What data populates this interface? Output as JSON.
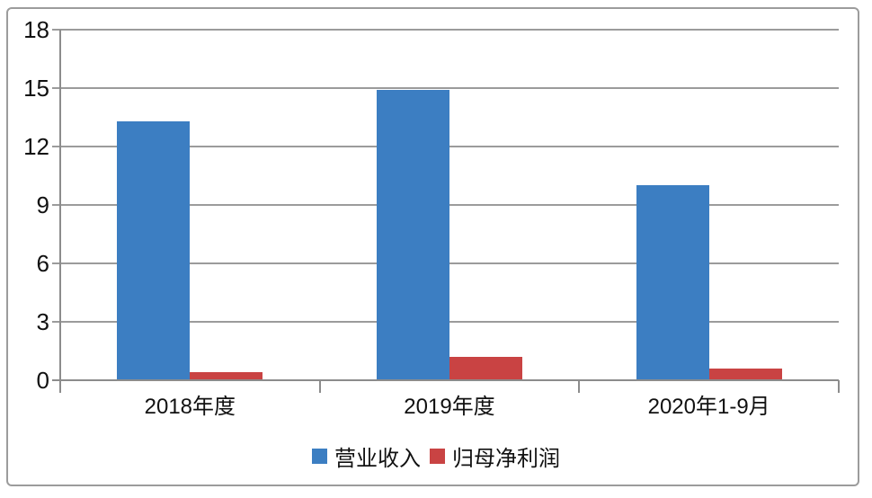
{
  "chart_data": {
    "type": "bar",
    "categories": [
      "2018年度",
      "2019年度",
      "2020年1-9月"
    ],
    "series": [
      {
        "name": "营业收入",
        "color": "#3c7ec2",
        "values": [
          13.3,
          14.9,
          10.0
        ]
      },
      {
        "name": "归母净利润",
        "color": "#c94343",
        "values": [
          0.4,
          1.2,
          0.6
        ]
      }
    ],
    "title": "",
    "xlabel": "",
    "ylabel": "",
    "yticks": [
      0,
      3,
      6,
      9,
      12,
      15,
      18
    ],
    "ylim": [
      0,
      18
    ],
    "grid": true,
    "legend_position": "bottom",
    "axis_color": "#8c8c8c",
    "grid_color": "#9b9b9b",
    "text_color": "#111111",
    "frame_color": "#9c9c9c"
  }
}
